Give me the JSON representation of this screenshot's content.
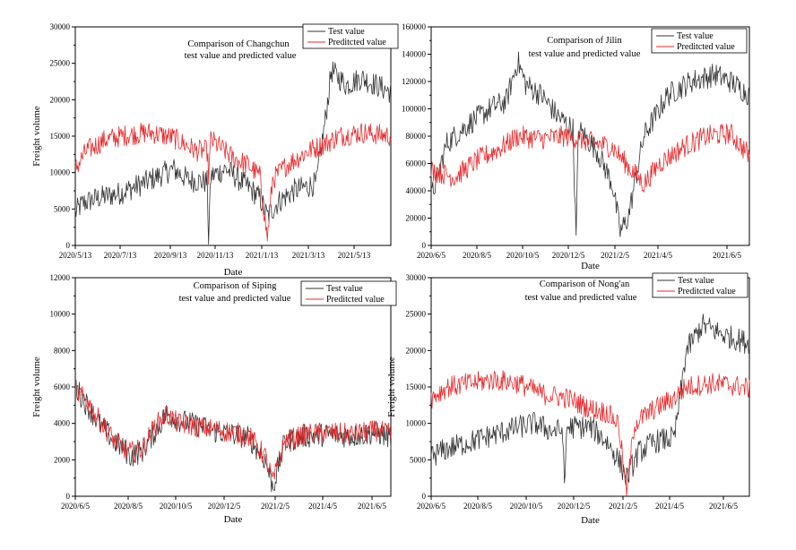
{
  "chart_data": [
    {
      "type": "line",
      "title": [
        "Comparison of Changchun",
        "test value and predicted value"
      ],
      "xlabel": "Date",
      "ylabel": "Freight volume",
      "ylim": [
        0,
        30000
      ],
      "yticks": [
        0,
        5000,
        10000,
        15000,
        20000,
        25000,
        30000
      ],
      "xlim": [
        "2020/5/13",
        "2021/7/10"
      ],
      "xticks": [
        "2020/5/13",
        "2020/7/13",
        "2020/9/13",
        "2020/11/13",
        "2021/1/13",
        "2021/3/13",
        "2021/5/13"
      ],
      "legend": [
        "Test value",
        "Preditcted value"
      ],
      "legend_position": "top-right",
      "series": [
        {
          "name": "Test value",
          "color": "#333333",
          "keypoints": [
            [
              0,
              4500
            ],
            [
              10,
              5800
            ],
            [
              30,
              6500
            ],
            [
              60,
              7200
            ],
            [
              90,
              8500
            ],
            [
              110,
              9500
            ],
            [
              130,
              10500
            ],
            [
              150,
              9000
            ],
            [
              175,
              8700
            ],
            [
              177,
              1000
            ],
            [
              180,
              9500
            ],
            [
              200,
              10500
            ],
            [
              230,
              8000
            ],
            [
              245,
              6500
            ],
            [
              255,
              4000
            ],
            [
              270,
              6000
            ],
            [
              290,
              7500
            ],
            [
              320,
              8500
            ],
            [
              333,
              18000
            ],
            [
              340,
              24000
            ],
            [
              360,
              22000
            ],
            [
              380,
              23000
            ],
            [
              420,
              21000
            ]
          ]
        },
        {
          "name": "Preditcted value",
          "color": "#e8282a",
          "keypoints": [
            [
              0,
              10500
            ],
            [
              15,
              13000
            ],
            [
              40,
              14500
            ],
            [
              70,
              15200
            ],
            [
              100,
              15500
            ],
            [
              130,
              14800
            ],
            [
              160,
              13000
            ],
            [
              175,
              13000
            ],
            [
              177,
              9500
            ],
            [
              180,
              14500
            ],
            [
              210,
              12000
            ],
            [
              230,
              11000
            ],
            [
              245,
              9500
            ],
            [
              255,
              1000
            ],
            [
              262,
              9000
            ],
            [
              280,
              11000
            ],
            [
              310,
              13000
            ],
            [
              333,
              14000
            ],
            [
              350,
              15000
            ],
            [
              380,
              15500
            ],
            [
              420,
              15000
            ]
          ]
        }
      ]
    },
    {
      "type": "line",
      "title": [
        "Comparison of Jilin",
        "test value and predicted value"
      ],
      "xlabel": "Date",
      "ylabel": "",
      "ylim": [
        0,
        160000
      ],
      "yticks": [
        0,
        20000,
        40000,
        60000,
        80000,
        100000,
        120000,
        140000,
        160000
      ],
      "xlim": [
        "2020/6/5",
        "2021/7/15"
      ],
      "xticks": [
        "2020/6/5",
        "2020/8/5",
        "2020/10/5",
        "2020/12/5",
        "2021/2/5",
        "2021/4/5",
        "2021/6/5"
      ],
      "legend": [
        "Test value",
        "Preditcted value"
      ],
      "legend_position": "top-right",
      "series": [
        {
          "name": "Test value",
          "color": "#333333",
          "keypoints": [
            [
              0,
              35000
            ],
            [
              20,
              75000
            ],
            [
              50,
              90000
            ],
            [
              80,
              102000
            ],
            [
              95,
              105000
            ],
            [
              110,
              135000
            ],
            [
              120,
              118000
            ],
            [
              140,
              110000
            ],
            [
              160,
              95000
            ],
            [
              180,
              85000
            ],
            [
              184,
              5000
            ],
            [
              187,
              85000
            ],
            [
              210,
              70000
            ],
            [
              230,
              45000
            ],
            [
              240,
              10000
            ],
            [
              250,
              20000
            ],
            [
              270,
              80000
            ],
            [
              300,
              110000
            ],
            [
              330,
              120000
            ],
            [
              360,
              125000
            ],
            [
              380,
              120000
            ],
            [
              405,
              110000
            ]
          ]
        },
        {
          "name": "Preditcted value",
          "color": "#e8282a",
          "keypoints": [
            [
              0,
              55000
            ],
            [
              30,
              50000
            ],
            [
              60,
              63000
            ],
            [
              90,
              72000
            ],
            [
              110,
              80000
            ],
            [
              140,
              78000
            ],
            [
              170,
              80000
            ],
            [
              200,
              76000
            ],
            [
              230,
              72000
            ],
            [
              250,
              58000
            ],
            [
              270,
              45000
            ],
            [
              290,
              60000
            ],
            [
              320,
              72000
            ],
            [
              350,
              80000
            ],
            [
              380,
              82000
            ],
            [
              405,
              65000
            ]
          ]
        }
      ]
    },
    {
      "type": "line",
      "title": [
        "Comparison of Siping",
        "test value and predicted value"
      ],
      "xlabel": "Date",
      "ylabel": "Freight volume",
      "ylim": [
        0,
        12000
      ],
      "yticks": [
        0,
        2000,
        4000,
        6000,
        8000,
        10000,
        12000
      ],
      "xlim": [
        "2020/6/5",
        "2021/7/10"
      ],
      "xticks": [
        "2020/6/5",
        "2020/8/5",
        "2020/10/5",
        "2020/12/5",
        "2021/2/5",
        "2021/4/5",
        "2021/6/5"
      ],
      "legend": [
        "Test value",
        "Preditcted value"
      ],
      "legend_position": "top-right",
      "series": [
        {
          "name": "Test value",
          "color": "#333333",
          "keypoints": [
            [
              0,
              6000
            ],
            [
              15,
              5000
            ],
            [
              30,
              4000
            ],
            [
              50,
              3000
            ],
            [
              70,
              2200
            ],
            [
              85,
              2500
            ],
            [
              100,
              3500
            ],
            [
              115,
              4500
            ],
            [
              130,
              4200
            ],
            [
              160,
              3800
            ],
            [
              170,
              3600
            ],
            [
              200,
              3400
            ],
            [
              220,
              3200
            ],
            [
              240,
              2000
            ],
            [
              250,
              500
            ],
            [
              265,
              3000
            ],
            [
              290,
              3300
            ],
            [
              320,
              3400
            ],
            [
              350,
              3300
            ],
            [
              380,
              3500
            ],
            [
              400,
              3200
            ]
          ]
        },
        {
          "name": "Preditcted value",
          "color": "#e8282a",
          "keypoints": [
            [
              0,
              5800
            ],
            [
              15,
              5200
            ],
            [
              30,
              4200
            ],
            [
              50,
              3000
            ],
            [
              70,
              2400
            ],
            [
              85,
              2600
            ],
            [
              100,
              3800
            ],
            [
              115,
              4500
            ],
            [
              130,
              4000
            ],
            [
              160,
              3800
            ],
            [
              200,
              3500
            ],
            [
              220,
              3300
            ],
            [
              240,
              2200
            ],
            [
              250,
              800
            ],
            [
              265,
              3000
            ],
            [
              290,
              3400
            ],
            [
              320,
              3500
            ],
            [
              350,
              3400
            ],
            [
              380,
              3600
            ],
            [
              400,
              3400
            ]
          ]
        }
      ]
    },
    {
      "type": "line",
      "title": [
        "Comparison of Nong'an",
        "test value and predicted value"
      ],
      "xlabel": "Date",
      "ylabel": "Freight volume",
      "ylim": [
        0,
        30000
      ],
      "yticks": [
        0,
        5000,
        10000,
        15000,
        20000,
        25000,
        30000
      ],
      "xlim": [
        "2020/6/5",
        "2021/7/10"
      ],
      "xticks": [
        "2020/6/5",
        "2020/8/5",
        "2020/10/5",
        "2020/12/5",
        "2021/2/5",
        "2021/4/5",
        "2021/6/5"
      ],
      "legend": [
        "Test value",
        "Preditcted value"
      ],
      "legend_position": "top-right",
      "series": [
        {
          "name": "Test value",
          "color": "#333333",
          "keypoints": [
            [
              0,
              5500
            ],
            [
              20,
              6500
            ],
            [
              50,
              7500
            ],
            [
              80,
              8500
            ],
            [
              110,
              9500
            ],
            [
              130,
              10000
            ],
            [
              150,
              9000
            ],
            [
              165,
              9000
            ],
            [
              167,
              500
            ],
            [
              170,
              9500
            ],
            [
              200,
              9500
            ],
            [
              220,
              7500
            ],
            [
              235,
              5000
            ],
            [
              245,
              2500
            ],
            [
              260,
              6000
            ],
            [
              280,
              7500
            ],
            [
              305,
              8000
            ],
            [
              320,
              20000
            ],
            [
              340,
              23500
            ],
            [
              370,
              22000
            ],
            [
              400,
              21000
            ]
          ]
        },
        {
          "name": "Preditcted value",
          "color": "#e8282a",
          "keypoints": [
            [
              0,
              13500
            ],
            [
              20,
              15000
            ],
            [
              50,
              15500
            ],
            [
              80,
              16000
            ],
            [
              110,
              15500
            ],
            [
              140,
              14000
            ],
            [
              170,
              13500
            ],
            [
              200,
              12000
            ],
            [
              220,
              11500
            ],
            [
              235,
              10000
            ],
            [
              245,
              500
            ],
            [
              255,
              10000
            ],
            [
              280,
              12000
            ],
            [
              305,
              13500
            ],
            [
              320,
              15000
            ],
            [
              350,
              15500
            ],
            [
              380,
              15200
            ],
            [
              400,
              14800
            ]
          ]
        }
      ]
    }
  ]
}
